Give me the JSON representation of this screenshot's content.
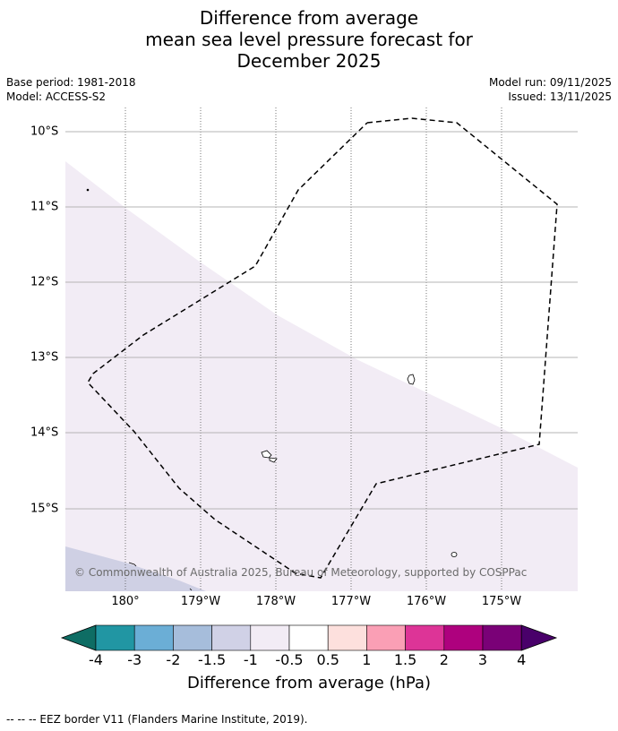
{
  "title": {
    "line1": "Difference from average",
    "line2": "mean sea level pressure forecast for",
    "line3": "December 2025"
  },
  "meta": {
    "base_period": "Base period: 1981-2018",
    "model": "Model: ACCESS-S2",
    "model_run": "Model run: 09/11/2025",
    "issued": "Issued: 13/11/2025"
  },
  "map": {
    "lat_labels": [
      "10°S",
      "11°S",
      "12°S",
      "13°S",
      "14°S",
      "15°S"
    ],
    "lon_labels": [
      "180°",
      "179°W",
      "178°W",
      "177°W",
      "176°W",
      "175°W"
    ],
    "copyright": "© Commonwealth of Australia 2025, Bureau of Meteorology, supported by COSPPac",
    "fill_colors": {
      "pale_lilac": "#f2ecf5",
      "lilac": "#cfd0e4",
      "border": "#000000"
    }
  },
  "colorbar": {
    "ticks": [
      "-4",
      "-3",
      "-2",
      "-1.5",
      "-1",
      "-0.5",
      "0.5",
      "1",
      "1.5",
      "2",
      "3",
      "4"
    ],
    "colors": [
      "#0e6d64",
      "#2196a3",
      "#6baed6",
      "#a6bddb",
      "#d0d1e6",
      "#f2ecf5",
      "#ffffff",
      "#fde0dd",
      "#fa9fb5",
      "#dd3497",
      "#ae017e",
      "#7a0177",
      "#49006a"
    ],
    "title": "Difference from average (hPa)"
  },
  "footer": "--  --  -- EEZ border V11 (Flanders Marine Institute, 2019)."
}
